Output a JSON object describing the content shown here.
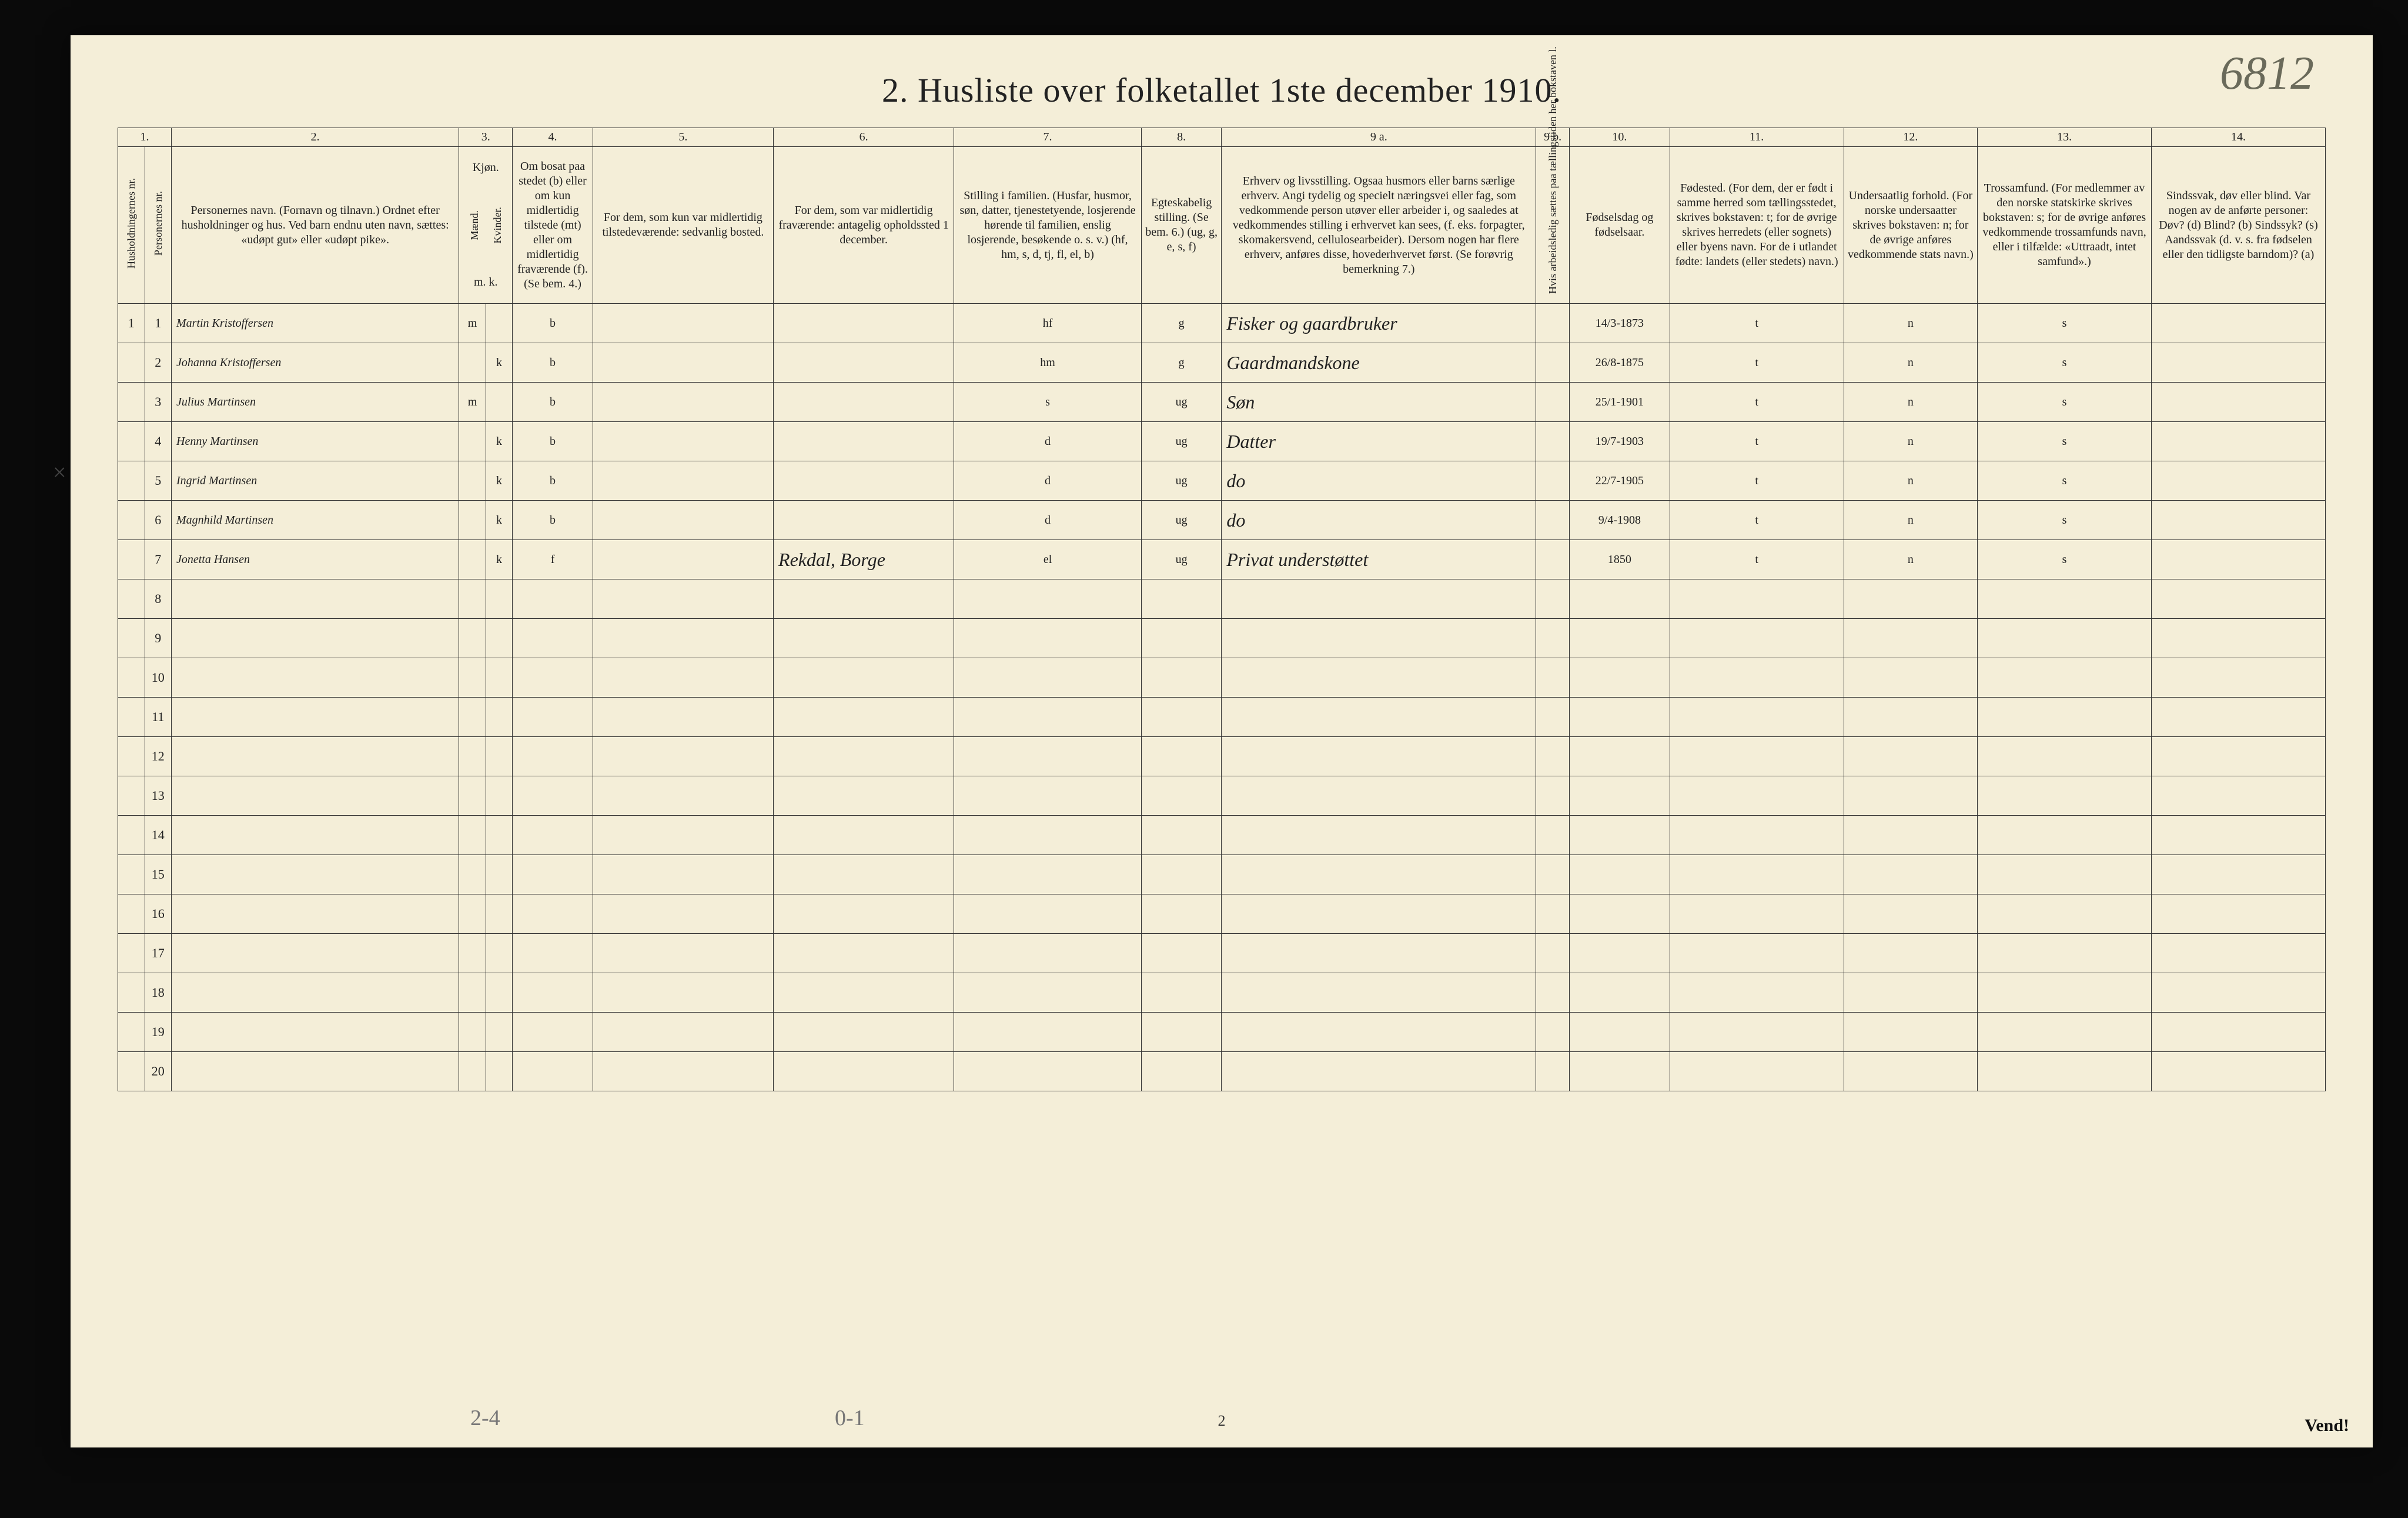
{
  "title": "2.  Husliste over folketallet 1ste december 1910.",
  "handwritten_id": "6812",
  "margin_mark": "×",
  "footer_page": "2",
  "footer_tally_left": "2-4",
  "footer_tally_mid": "0-1",
  "vend": "Vend!",
  "columns": {
    "nums": [
      "1.",
      "2.",
      "3.",
      "4.",
      "5.",
      "6.",
      "7.",
      "8.",
      "9 a.",
      "9 b.",
      "10.",
      "11.",
      "12.",
      "13.",
      "14."
    ],
    "heads": {
      "c1a": "Husholdningernes nr.",
      "c1b": "Personernes nr.",
      "c2": "Personernes navn.\n(Fornavn og tilnavn.)\nOrdnet efter husholdninger og hus.\nVed barn endnu uten navn, sættes: «udøpt gut» eller «udøpt pike».",
      "c3": "Kjøn.",
      "c3a": "Mænd.",
      "c3b": "Kvinder.",
      "c3sub": "m.  k.",
      "c4": "Om bosat paa stedet (b) eller om kun midlertidig tilstede (mt) eller om midlertidig fraværende (f).\n(Se bem. 4.)",
      "c5": "For dem, som kun var midlertidig tilstedeværende:\nsedvanlig bosted.",
      "c6": "For dem, som var midlertidig fraværende:\nantagelig opholdssted 1 december.",
      "c7": "Stilling i familien.\n(Husfar, husmor, søn, datter, tjenestetyende, losjerende hørende til familien, enslig losjerende, besøkende o. s. v.)\n(hf, hm, s, d, tj, fl, el, b)",
      "c8": "Egteskabelig stilling.\n(Se bem. 6.)\n(ug, g, e, s, f)",
      "c9a": "Erhverv og livsstilling.\nOgsaa husmors eller barns særlige erhverv.\nAngi tydelig og specielt næringsvei eller fag, som vedkommende person utøver eller arbeider i, og saaledes at vedkommendes stilling i erhvervet kan sees, (f. eks. forpagter, skomakersvend, cellulosearbeider). Dersom nogen har flere erhverv, anføres disse, hovederhvervet først.\n(Se forøvrig bemerkning 7.)",
      "c9b": "Hvis arbeidsledig sættes paa tællingstiden her bokstaven l.",
      "c10": "Fødselsdag og fødselsaar.",
      "c11": "Fødested.\n(For dem, der er født i samme herred som tællingsstedet, skrives bokstaven: t; for de øvrige skrives herredets (eller sognets) eller byens navn. For de i utlandet fødte: landets (eller stedets) navn.)",
      "c12": "Undersaatlig forhold.\n(For norske undersaatter skrives bokstaven: n; for de øvrige anføres vedkommende stats navn.)",
      "c13": "Trossamfund.\n(For medlemmer av den norske statskirke skrives bokstaven: s; for de øvrige anføres vedkommende trossamfunds navn, eller i tilfælde: «Uttraadt, intet samfund».)",
      "c14": "Sindssvak, døv eller blind.\nVar nogen av de anførte personer:\nDøv? (d)\nBlind? (b)\nSindssyk? (s)\nAandssvak (d. v. s. fra fødselen eller den tidligste barndom)? (a)"
    }
  },
  "colwidths": {
    "c1a": 40,
    "c1b": 40,
    "c2": 430,
    "c3a": 40,
    "c3b": 40,
    "c4": 120,
    "c5": 270,
    "c6": 270,
    "c7": 280,
    "c8": 120,
    "c9a": 470,
    "c9b": 50,
    "c10": 150,
    "c11": 260,
    "c12": 200,
    "c13": 260,
    "c14": 260
  },
  "rows": [
    {
      "hh": "1",
      "pn": "1",
      "name": "Martin Kristoffersen",
      "m": "m",
      "k": "",
      "res": "b",
      "c5": "",
      "c6": "",
      "fam": "hf",
      "mar": "g",
      "occ": "Fisker og gaardbruker",
      "led": "",
      "birth": "14/3-1873",
      "place": "t",
      "nat": "n",
      "rel": "s",
      "dis": ""
    },
    {
      "hh": "",
      "pn": "2",
      "name": "Johanna Kristoffersen",
      "m": "",
      "k": "k",
      "res": "b",
      "c5": "",
      "c6": "",
      "fam": "hm",
      "mar": "g",
      "occ": "Gaardmandskone",
      "led": "",
      "birth": "26/8-1875",
      "place": "t",
      "nat": "n",
      "rel": "s",
      "dis": ""
    },
    {
      "hh": "",
      "pn": "3",
      "name": "Julius Martinsen",
      "m": "m",
      "k": "",
      "res": "b",
      "c5": "",
      "c6": "",
      "fam": "s",
      "mar": "ug",
      "occ": "Søn",
      "led": "",
      "birth": "25/1-1901",
      "place": "t",
      "nat": "n",
      "rel": "s",
      "dis": ""
    },
    {
      "hh": "",
      "pn": "4",
      "name": "Henny Martinsen",
      "m": "",
      "k": "k",
      "res": "b",
      "c5": "",
      "c6": "",
      "fam": "d",
      "mar": "ug",
      "occ": "Datter",
      "led": "",
      "birth": "19/7-1903",
      "place": "t",
      "nat": "n",
      "rel": "s",
      "dis": ""
    },
    {
      "hh": "",
      "pn": "5",
      "name": "Ingrid Martinsen",
      "m": "",
      "k": "k",
      "res": "b",
      "c5": "",
      "c6": "",
      "fam": "d",
      "mar": "ug",
      "occ": "do",
      "led": "",
      "birth": "22/7-1905",
      "place": "t",
      "nat": "n",
      "rel": "s",
      "dis": ""
    },
    {
      "hh": "",
      "pn": "6",
      "name": "Magnhild Martinsen",
      "m": "",
      "k": "k",
      "res": "b",
      "c5": "",
      "c6": "",
      "fam": "d",
      "mar": "ug",
      "occ": "do",
      "led": "",
      "birth": "9/4-1908",
      "place": "t",
      "nat": "n",
      "rel": "s",
      "dis": ""
    },
    {
      "hh": "",
      "pn": "7",
      "name": "Jonetta Hansen",
      "m": "",
      "k": "k",
      "res": "f",
      "c5": "",
      "c6": "Rekdal, Borge",
      "fam": "el",
      "mar": "ug",
      "occ": "Privat understøttet",
      "led": "",
      "birth": "1850",
      "place": "t",
      "nat": "n",
      "rel": "s",
      "dis": ""
    },
    {
      "hh": "",
      "pn": "8"
    },
    {
      "hh": "",
      "pn": "9"
    },
    {
      "hh": "",
      "pn": "10"
    },
    {
      "hh": "",
      "pn": "11"
    },
    {
      "hh": "",
      "pn": "12"
    },
    {
      "hh": "",
      "pn": "13"
    },
    {
      "hh": "",
      "pn": "14"
    },
    {
      "hh": "",
      "pn": "15"
    },
    {
      "hh": "",
      "pn": "16"
    },
    {
      "hh": "",
      "pn": "17"
    },
    {
      "hh": "",
      "pn": "18"
    },
    {
      "hh": "",
      "pn": "19"
    },
    {
      "hh": "",
      "pn": "20"
    }
  ],
  "colors": {
    "paper": "#f4eed8",
    "ink": "#222222",
    "pencil": "#777777",
    "border": "#333333",
    "background": "#0a0a0a"
  }
}
